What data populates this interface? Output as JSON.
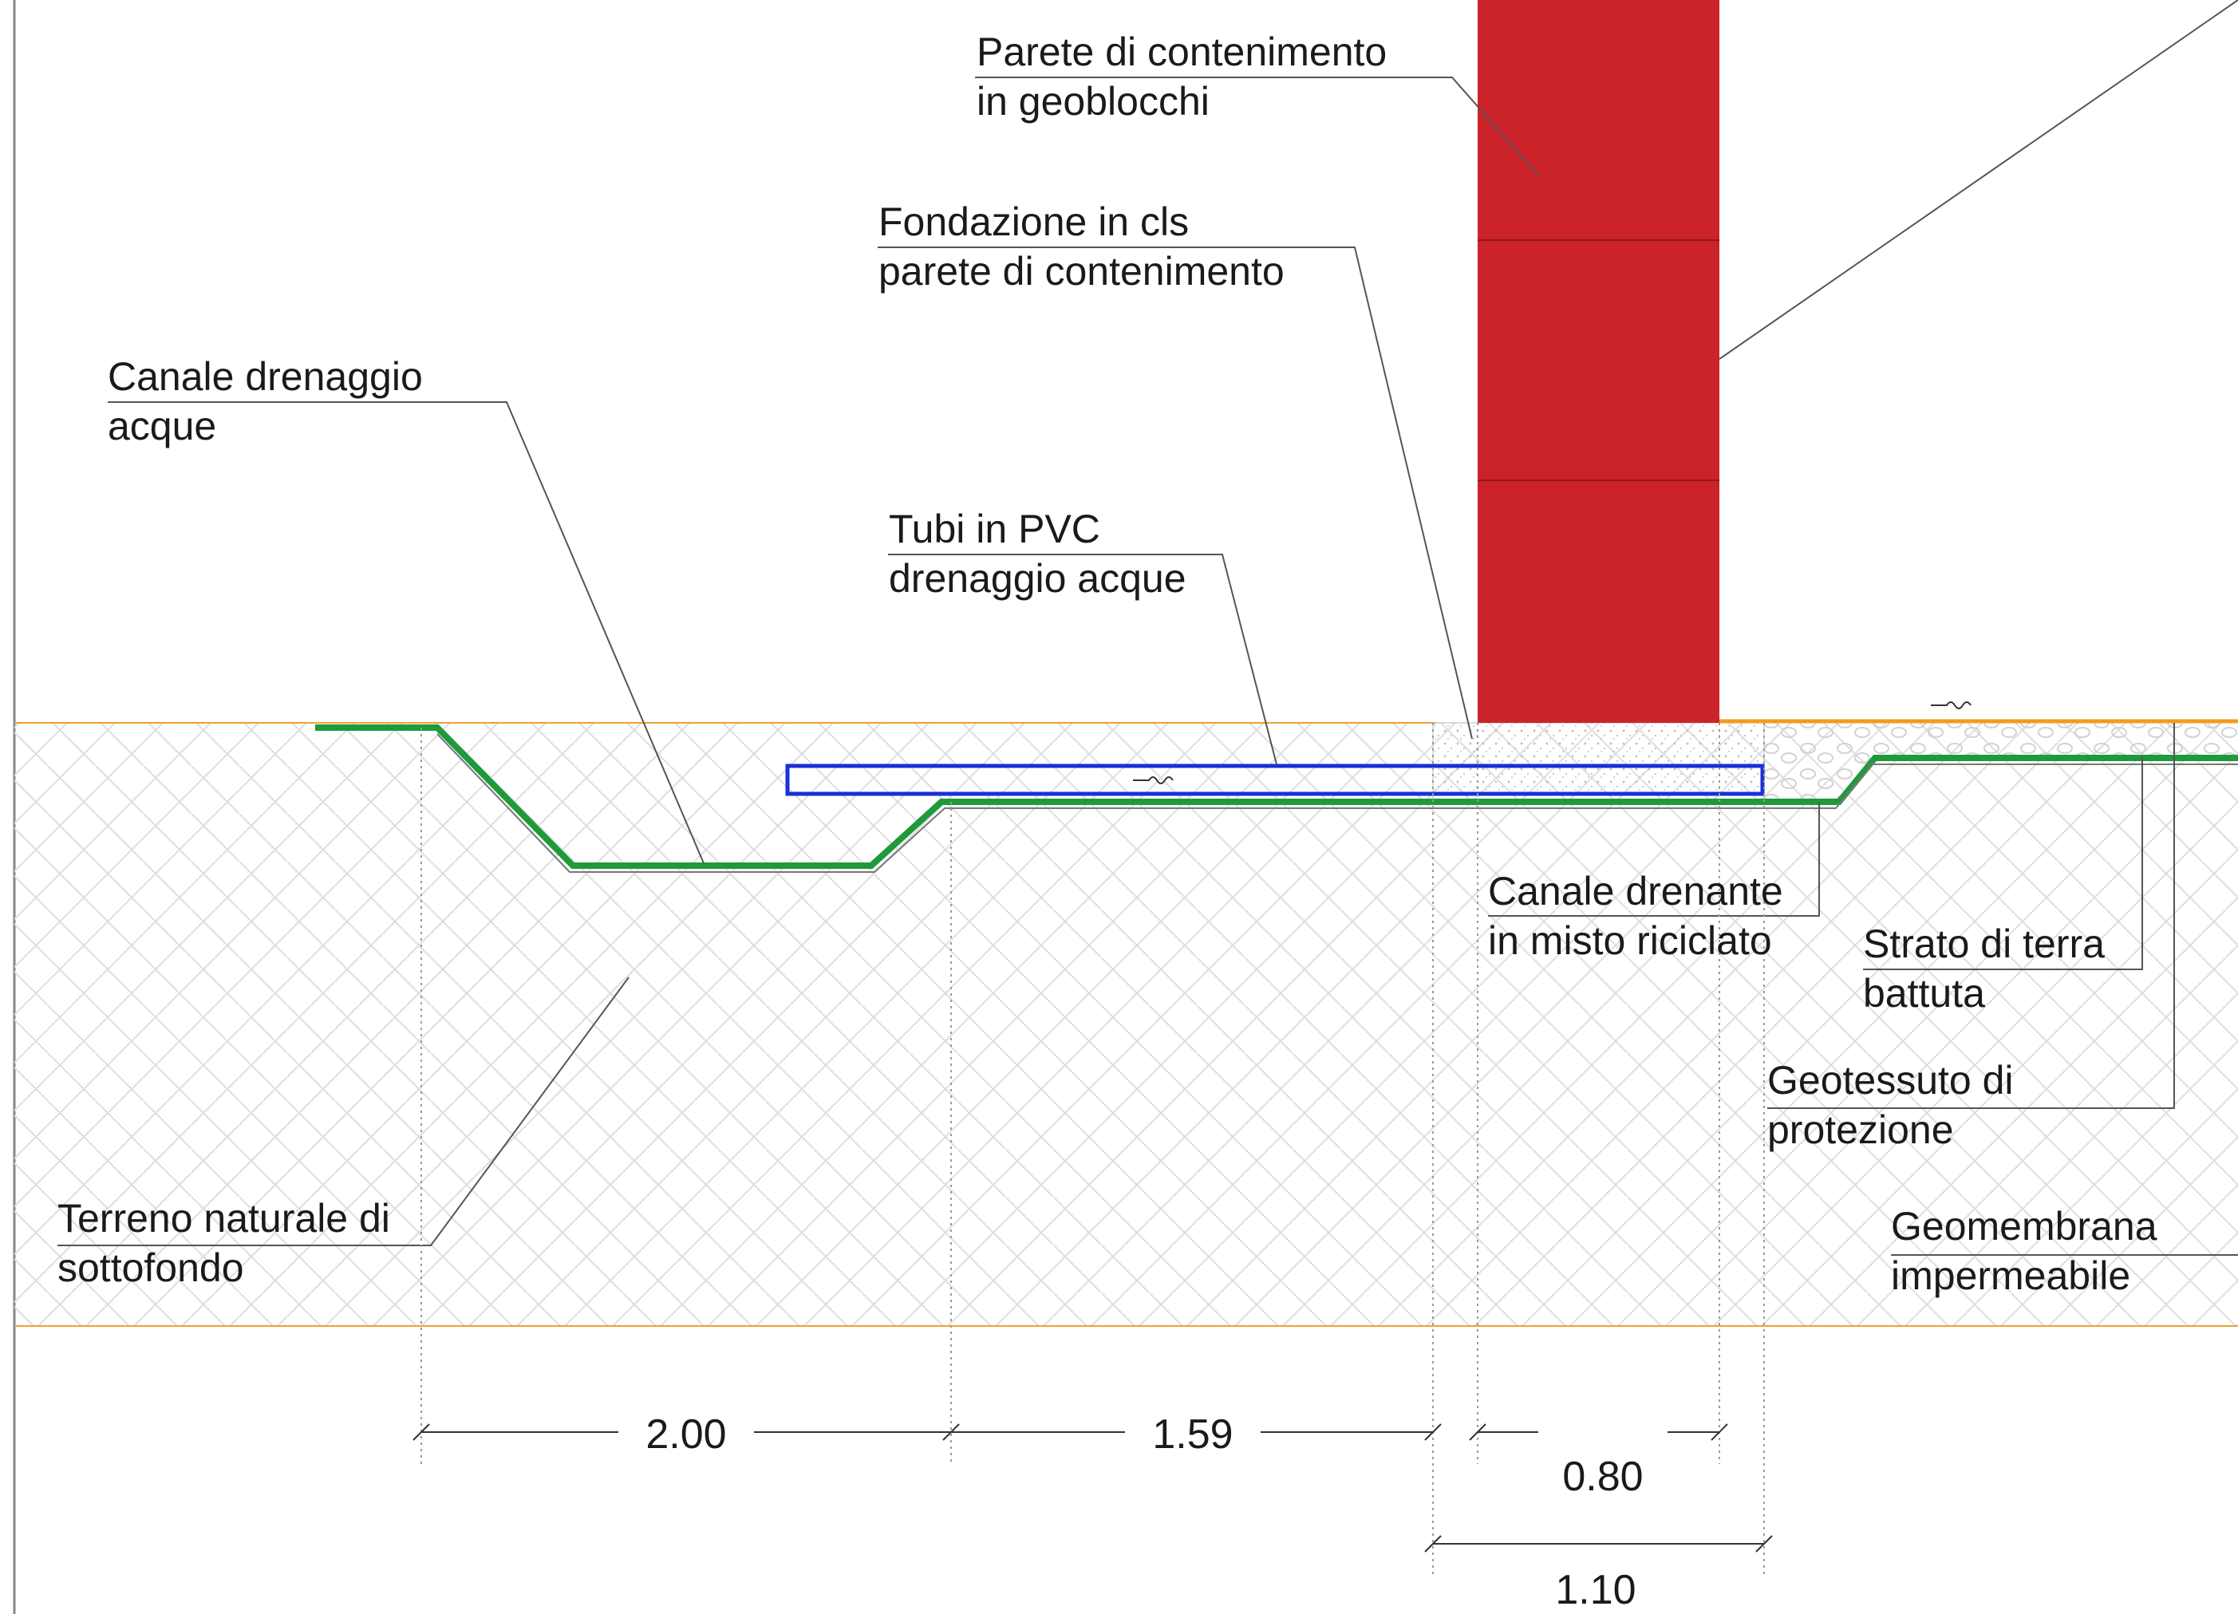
{
  "labels": {
    "wall": [
      "Parete di contenimento",
      "in geoblocchi"
    ],
    "foundation": [
      "Fondazione in cls",
      "parete di contenimento"
    ],
    "channel": [
      "Canale drenaggio",
      "acque"
    ],
    "pipes": [
      "Tubi in PVC",
      "drenaggio acque"
    ],
    "drain_channel": [
      "Canale drenante",
      "in misto riciclato"
    ],
    "compacted_soil": [
      "Strato di terra",
      "battuta"
    ],
    "geotextile": [
      "Geotessuto di",
      "protezione"
    ],
    "natural_ground": [
      "Terreno naturale di",
      "sottofondo"
    ],
    "geomembrane": [
      "Geomembrana",
      "impermeabile"
    ]
  },
  "dimensions": {
    "d1": "2.00",
    "d2": "1.59",
    "d3": "0.80",
    "d4": "1.10"
  },
  "colors": {
    "wall": "#cc2229",
    "geomembrane": "#1e9a3a",
    "pvc_pipe": "#1a2fd6",
    "ground_line": "#f0a030",
    "orange_surface": "#f59a1e",
    "hatch": "#dcdcdc",
    "concrete": "#c8c8c8",
    "leader": "#555555"
  }
}
